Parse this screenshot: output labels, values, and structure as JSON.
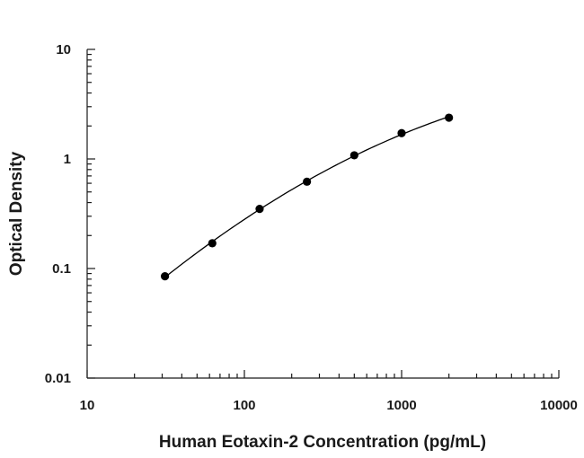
{
  "chart_data": {
    "type": "scatter",
    "title": "",
    "xlabel": "Human Eotaxin-2 Concentration (pg/mL)",
    "ylabel": "Optical Density",
    "x_scale": "log",
    "y_scale": "log",
    "xlim": [
      10,
      10000
    ],
    "ylim": [
      0.01,
      10
    ],
    "x_ticks": [
      10,
      100,
      1000,
      10000
    ],
    "x_tick_labels": [
      "10",
      "100",
      "1000",
      "10000"
    ],
    "y_ticks": [
      0.01,
      0.1,
      1,
      10
    ],
    "y_tick_labels": [
      "0.01",
      "0.1",
      "1",
      "10"
    ],
    "grid": false,
    "legend": "none",
    "series": [
      {
        "x": [
          31.25,
          62.5,
          125,
          250,
          500,
          1000,
          2000
        ],
        "y": [
          0.085,
          0.17,
          0.35,
          0.62,
          1.08,
          1.72,
          2.38
        ],
        "marker": "filled-circle",
        "fit_line": true,
        "color": "#000000"
      }
    ]
  }
}
